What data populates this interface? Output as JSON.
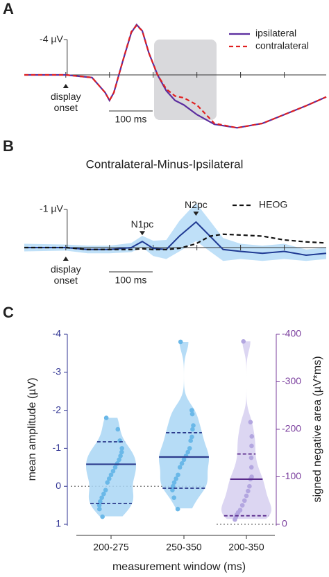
{
  "panels": [
    "A",
    "B",
    "C"
  ],
  "chart_data": [
    {
      "type": "line",
      "onset_label": "display onset",
      "scale_bar": {
        "y_value": -4,
        "y_label": "-4 µV",
        "x_value": 100,
        "x_label": "100 ms"
      },
      "xlim": [
        -95,
        596
      ],
      "ylim": [
        7,
        -7
      ],
      "series": [
        {
          "name": "ipsilateral",
          "color": "#5b2c9e",
          "dash": false,
          "x": [
            -95,
            0,
            60,
            90,
            100,
            110,
            130,
            150,
            162,
            175,
            190,
            210,
            230,
            250,
            270,
            300,
            340,
            392,
            450,
            500,
            550,
            596
          ],
          "values": [
            0,
            0,
            0.3,
            2,
            2.9,
            2,
            -1.5,
            -4.8,
            -5.7,
            -5,
            -2.5,
            0,
            1.8,
            2.9,
            3.4,
            4.5,
            5.6,
            6,
            5.5,
            4.5,
            3.5,
            2.5
          ]
        },
        {
          "name": "contralateral",
          "color": "#e02020",
          "dash": true,
          "x": [
            -95,
            0,
            60,
            90,
            100,
            110,
            130,
            150,
            162,
            175,
            190,
            210,
            230,
            250,
            270,
            300,
            340,
            392,
            450,
            500,
            550,
            596
          ],
          "values": [
            0,
            0,
            0.3,
            2,
            2.9,
            2,
            -1.5,
            -4.9,
            -5.6,
            -5,
            -2.5,
            0,
            1.6,
            2.4,
            2.6,
            3.4,
            5.5,
            6,
            5.5,
            4.5,
            3.5,
            2.5
          ]
        }
      ]
    },
    {
      "type": "line",
      "title": "Contralateral-Minus-Ipsilateral",
      "onset_label": "display onset",
      "scale_bar": {
        "y_value": -1,
        "y_label": "-1 µV",
        "x_value": 100,
        "x_label": "100 ms"
      },
      "xlim": [
        -95,
        596
      ],
      "ylim": [
        1.2,
        -1.5
      ],
      "annotations": [
        {
          "text": "N1pc",
          "x": 175
        },
        {
          "text": "N2pc",
          "x": 298
        }
      ],
      "series": [
        {
          "name": null,
          "color": "#1f3a93",
          "band_color": "#a9d6f5",
          "dash": false,
          "x": [
            -95,
            0,
            50,
            100,
            150,
            175,
            200,
            230,
            260,
            298,
            330,
            360,
            400,
            450,
            500,
            550,
            596
          ],
          "values": [
            0,
            0,
            0.05,
            0.05,
            0,
            -0.16,
            0.02,
            0.05,
            -0.3,
            -0.67,
            -0.3,
            0.05,
            0.1,
            0.15,
            0.1,
            0.2,
            0.15
          ],
          "errors": [
            0.1,
            0.08,
            0.1,
            0.1,
            0.12,
            0.15,
            0.2,
            0.25,
            0.4,
            0.5,
            0.4,
            0.3,
            0.2,
            0.2,
            0.2,
            0.15,
            0.15
          ]
        },
        {
          "name": "HEOG",
          "color": "#111111",
          "dash": true,
          "x": [
            -95,
            0,
            50,
            100,
            150,
            175,
            200,
            230,
            260,
            298,
            330,
            360,
            400,
            450,
            500,
            550,
            596
          ],
          "values": [
            0,
            0,
            0.05,
            0.05,
            0.05,
            0.03,
            0.05,
            0.05,
            0.02,
            -0.1,
            -0.3,
            -0.35,
            -0.33,
            -0.3,
            -0.2,
            -0.15,
            -0.12
          ]
        }
      ]
    },
    {
      "type": "violin",
      "xlabel": "measurement window (ms)",
      "ylabel": "mean amplitude (µV)",
      "y2label": "signed negative area (µV*ms)",
      "categories": [
        "200-275",
        "250-350",
        "200-350"
      ],
      "ylim": [
        1,
        -4
      ],
      "yticks": [
        -4,
        -3,
        -2,
        -1,
        0,
        1
      ],
      "ycolor": "#2e3192",
      "y2lim": [
        0,
        -400
      ],
      "y2ticks": [
        -400,
        -300,
        -200,
        -100,
        0
      ],
      "y2color": "#7b3f9e",
      "reference_line": 0,
      "groups": [
        {
          "axis": "y",
          "color": "#a9d6f5",
          "point_color": "#6ab8e8",
          "line_color": "#2b3a8c",
          "median": -0.58,
          "quartiles": [
            -1.17,
            0.45
          ],
          "points": [
            -1.8,
            -1.5,
            -1.2,
            -1.0,
            -0.9,
            -0.8,
            -0.7,
            -0.6,
            -0.5,
            -0.4,
            -0.3,
            -0.2,
            -0.1,
            0.1,
            0.2,
            0.3,
            0.4,
            0.5,
            0.6,
            0.8
          ]
        },
        {
          "axis": "y",
          "color": "#a9d6f5",
          "point_color": "#6ab8e8",
          "line_color": "#2b3a8c",
          "median": -0.77,
          "quartiles": [
            -1.41,
            0.05
          ],
          "points": [
            -3.8,
            -2.0,
            -1.9,
            -1.6,
            -1.5,
            -1.3,
            -1.2,
            -1.0,
            -0.9,
            -0.8,
            -0.7,
            -0.6,
            -0.5,
            -0.3,
            -0.2,
            -0.1,
            0.0,
            0.1,
            0.3,
            0.6
          ]
        },
        {
          "axis": "y2",
          "color": "#d6cff0",
          "point_color": "#b3a6e0",
          "line_color": "#5a2b8c",
          "median": -95,
          "quartiles": [
            -148,
            -18
          ],
          "points": [
            -385,
            -215,
            -185,
            -165,
            -140,
            -120,
            -100,
            -95,
            -80,
            -70,
            -60,
            -50,
            -40,
            -30,
            -25,
            -20,
            -15,
            -10
          ]
        }
      ]
    }
  ]
}
